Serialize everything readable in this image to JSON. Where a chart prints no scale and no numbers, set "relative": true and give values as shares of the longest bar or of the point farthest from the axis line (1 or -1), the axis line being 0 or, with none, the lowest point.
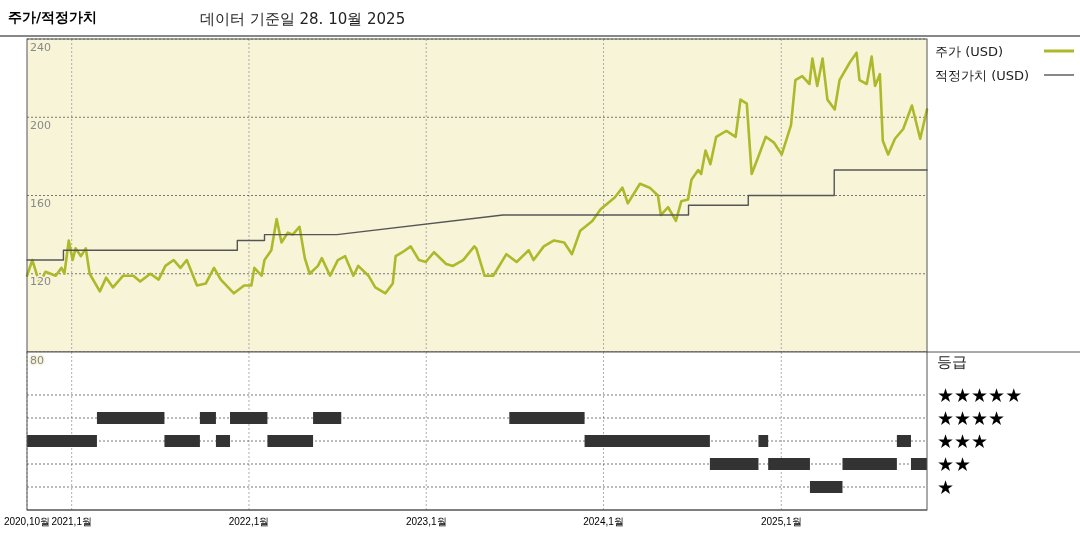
{
  "chart_data": [
    {
      "type": "line",
      "title": "주가/적정가치",
      "subtitle": "데이터 기준일 28. 10월 2025",
      "xlim": [
        "2020-10-01",
        "2025-10-28"
      ],
      "ylim": [
        80,
        240
      ],
      "xticks": [
        {
          "value": "2021-01-01",
          "label": null
        },
        {
          "value": "2022-01-01",
          "label": null
        },
        {
          "value": "2023-01-01",
          "label": null
        },
        {
          "value": "2024-01-01",
          "label": null
        },
        {
          "value": "2025-01-01",
          "label": null
        }
      ],
      "yticks": [
        80,
        120,
        160,
        200,
        240
      ],
      "grid": true,
      "legend": "top right",
      "tick_labels": "y",
      "series": [
        {
          "name": "주가 (USD)",
          "color": "#adb82a",
          "x": [
            "2020-10-01",
            "2020-10-12",
            "2020-10-27",
            "2020-11-08",
            "2020-11-29",
            "2020-12-11",
            "2020-12-17",
            "2020-12-26",
            "2021-01-03",
            "2021-01-09",
            "2021-01-20",
            "2021-01-30",
            "2021-02-07",
            "2021-02-28",
            "2021-03-13",
            "2021-03-27",
            "2021-04-17",
            "2021-05-08",
            "2021-05-22",
            "2021-06-12",
            "2021-06-29",
            "2021-07-13",
            "2021-07-30",
            "2021-08-13",
            "2021-08-26",
            "2021-09-16",
            "2021-10-04",
            "2021-10-21",
            "2021-11-04",
            "2021-12-01",
            "2021-12-22",
            "2022-01-06",
            "2022-01-12",
            "2022-01-27",
            "2022-02-02",
            "2022-02-16",
            "2022-02-27",
            "2022-03-09",
            "2022-03-22",
            "2022-04-01",
            "2022-04-15",
            "2022-04-26",
            "2022-05-06",
            "2022-05-23",
            "2022-05-31",
            "2022-06-17",
            "2022-07-03",
            "2022-07-18",
            "2022-08-04",
            "2022-08-14",
            "2022-09-04",
            "2022-09-18",
            "2022-10-09",
            "2022-10-24",
            "2022-10-30",
            "2022-11-13",
            "2022-11-30",
            "2022-12-17",
            "2022-12-31",
            "2023-01-17",
            "2023-02-11",
            "2023-02-25",
            "2023-03-18",
            "2023-04-10",
            "2023-04-14",
            "2023-05-01",
            "2023-05-19",
            "2023-06-15",
            "2023-07-06",
            "2023-07-31",
            "2023-08-10",
            "2023-08-31",
            "2023-09-21",
            "2023-10-12",
            "2023-10-28",
            "2023-11-14",
            "2023-12-09",
            "2023-12-26",
            "2024-01-24",
            "2024-02-09",
            "2024-02-20",
            "2024-03-16",
            "2024-04-05",
            "2024-04-22",
            "2024-04-28",
            "2024-05-13",
            "2024-05-29",
            "2024-06-09",
            "2024-06-23",
            "2024-06-30",
            "2024-07-14",
            "2024-07-20",
            "2024-07-29",
            "2024-08-08",
            "2024-08-20",
            "2024-09-10",
            "2024-09-29",
            "2024-10-09",
            "2024-10-22",
            "2024-11-01",
            "2024-11-12",
            "2024-11-30",
            "2024-12-17",
            "2025-01-02",
            "2025-01-21",
            "2025-01-30",
            "2025-02-13",
            "2025-02-28",
            "2025-03-06",
            "2025-03-16",
            "2025-03-27",
            "2025-04-06",
            "2025-04-21",
            "2025-05-01",
            "2025-05-22",
            "2025-06-05",
            "2025-06-11",
            "2025-06-26",
            "2025-07-06",
            "2025-07-13",
            "2025-07-23",
            "2025-07-29",
            "2025-08-09",
            "2025-08-23",
            "2025-09-09",
            "2025-09-27",
            "2025-10-14",
            "2025-10-28"
          ],
          "values": [
            119,
            127,
            115,
            121,
            119,
            123,
            120,
            137,
            127,
            133,
            129,
            133,
            120,
            111,
            118,
            113,
            119,
            119,
            116,
            120,
            117,
            124,
            127,
            123,
            127,
            114,
            115,
            123,
            117,
            110,
            114,
            114,
            123,
            119,
            127,
            132,
            148,
            136,
            141,
            140,
            144,
            128,
            120,
            124,
            128,
            119,
            127,
            129,
            119,
            124,
            119,
            113,
            110,
            115,
            129,
            131,
            134,
            127,
            126,
            131,
            125,
            124,
            127,
            134,
            133,
            119,
            119,
            130,
            126,
            132,
            127,
            134,
            137,
            136,
            130,
            142,
            147,
            153,
            159,
            164,
            156,
            166,
            164,
            160,
            150,
            154,
            147,
            157,
            158,
            168,
            173,
            171,
            183,
            176,
            190,
            193,
            190,
            209,
            207,
            171,
            178,
            190,
            187,
            181,
            196,
            219,
            221,
            217,
            230,
            216,
            230,
            209,
            204,
            219,
            228,
            233,
            219,
            217,
            231,
            216,
            222,
            188,
            181,
            189,
            194,
            206,
            189,
            204
          ]
        },
        {
          "name": "적정가치 (USD)",
          "color": "#555555",
          "x": [
            "2020-10-01",
            "2020-12-15",
            "2020-12-15",
            "2021-12-08",
            "2021-12-08",
            "2022-02-02",
            "2022-02-02",
            "2022-07-01",
            "2023-06-08",
            "2024-06-24",
            "2024-06-24",
            "2024-10-25",
            "2024-10-25",
            "2025-04-20",
            "2025-04-20",
            "2025-10-28"
          ],
          "values": [
            127,
            127,
            132,
            132,
            137,
            137,
            140,
            140,
            150,
            150,
            155,
            155,
            160,
            160,
            173,
            173
          ]
        }
      ]
    },
    {
      "type": "step",
      "ylabel": "등급",
      "xlim": [
        "2020-10-01",
        "2025-10-28"
      ],
      "relative": true,
      "annotations": [
        "★★★★★",
        "★★★★",
        "★★★",
        "★★",
        "★"
      ],
      "xticks": [
        {
          "value": "2020-10-01",
          "label": "2020,10월"
        },
        {
          "value": "2021-01-01",
          "label": "2021,1월"
        },
        {
          "value": "2022-01-01",
          "label": "2022,1월"
        },
        {
          "value": "2023-01-01",
          "label": "2023,1월"
        },
        {
          "value": "2024-01-01",
          "label": "2024,1월"
        },
        {
          "value": "2025-01-01",
          "label": "2025,1월"
        }
      ],
      "grid": true,
      "series": [
        {
          "color": "#333333",
          "x": [
            "2020-10-01",
            "2021-02-22",
            "2021-07-11",
            "2021-09-22",
            "2021-10-25",
            "2021-11-23",
            "2022-02-08",
            "2022-05-13",
            "2022-07-10",
            "2023-06-21",
            "2023-11-23",
            "2024-08-07",
            "2024-11-15",
            "2024-12-05",
            "2025-03-01",
            "2025-05-07",
            "2025-08-27",
            "2025-09-25",
            "2025-10-28"
          ],
          "values": [
            0.75,
            1,
            0.75,
            1,
            0.75,
            1,
            0.75,
            1,
            null,
            1,
            0.75,
            0.5,
            0.75,
            0.5,
            0.25,
            0.5,
            0.75,
            0.5,
            0.5
          ]
        }
      ]
    }
  ]
}
